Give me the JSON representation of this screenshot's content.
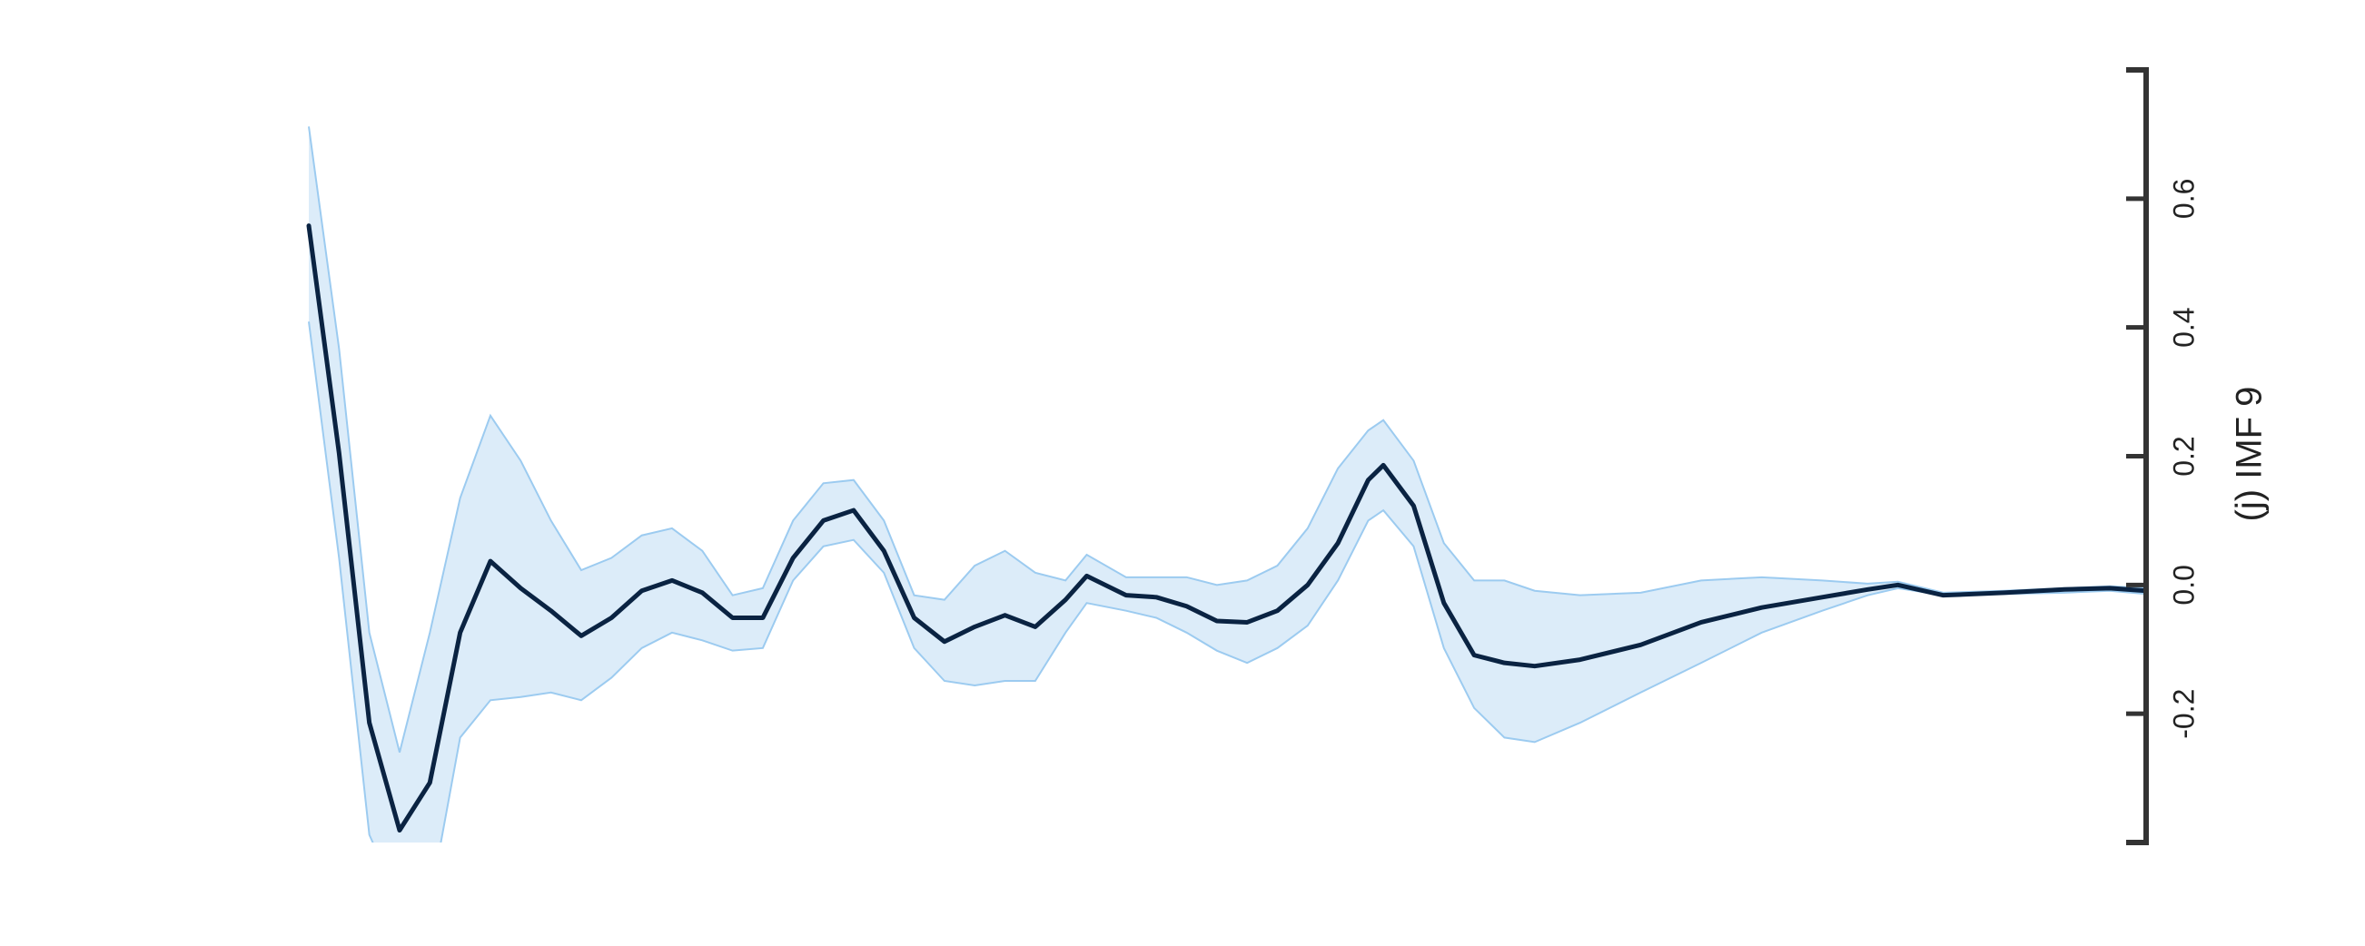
{
  "chart_data": {
    "type": "line",
    "y_label": "(j) IMF 9",
    "x": [
      0,
      20,
      40,
      60,
      80,
      100,
      120,
      140,
      160,
      180,
      200,
      220,
      240,
      260,
      280,
      300,
      320,
      340,
      360,
      380,
      400,
      420,
      440,
      460,
      480,
      500,
      514,
      540,
      560,
      580,
      600,
      620,
      640,
      660,
      680,
      700,
      710,
      730,
      750,
      770,
      790,
      810,
      840,
      880,
      920,
      960,
      1000,
      1030,
      1050,
      1080,
      1120,
      1160,
      1190,
      1214
    ],
    "xlim": [
      0,
      1214
    ],
    "series": [
      {
        "color": "#0a2342",
        "band_color": "#dcecf9",
        "band_edge_color": "#9ccbf0",
        "values": [
          0.558,
          0.205,
          -0.214,
          -0.381,
          -0.307,
          -0.074,
          0.037,
          -0.005,
          -0.04,
          -0.079,
          -0.051,
          -0.009,
          0.007,
          -0.012,
          -0.051,
          -0.051,
          0.042,
          0.1,
          0.116,
          0.053,
          -0.051,
          -0.088,
          -0.065,
          -0.047,
          -0.065,
          -0.023,
          0.014,
          -0.016,
          -0.019,
          -0.033,
          -0.056,
          -0.058,
          -0.04,
          0,
          0.065,
          0.163,
          0.186,
          0.123,
          -0.028,
          -0.109,
          -0.121,
          -0.126,
          -0.116,
          -0.093,
          -0.058,
          -0.035,
          -0.019,
          -0.007,
          0,
          -0.016,
          -0.012,
          -0.007,
          -0.005,
          -0.009
        ],
        "upper": [
          0.712,
          0.367,
          -0.074,
          -0.26,
          -0.074,
          0.135,
          0.263,
          0.193,
          0.1,
          0.023,
          0.042,
          0.077,
          0.088,
          0.053,
          -0.016,
          -0.005,
          0.1,
          0.158,
          0.163,
          0.1,
          -0.016,
          -0.023,
          0.03,
          0.053,
          0.019,
          0.007,
          0.047,
          0.012,
          0.012,
          0.012,
          0,
          0.007,
          0.03,
          0.088,
          0.181,
          0.24,
          0.256,
          0.193,
          0.065,
          0.007,
          0.007,
          -0.009,
          -0.016,
          -0.012,
          0.007,
          0.012,
          0.007,
          0.002,
          0.005,
          -0.012,
          -0.009,
          -0.005,
          -0.002,
          -0.005
        ],
        "lower": [
          0.409,
          0.042,
          -0.388,
          -0.493,
          -0.493,
          -0.237,
          -0.179,
          -0.174,
          -0.167,
          -0.179,
          -0.144,
          -0.098,
          -0.074,
          -0.086,
          -0.102,
          -0.098,
          0.007,
          0.06,
          0.07,
          0.019,
          -0.098,
          -0.149,
          -0.156,
          -0.149,
          -0.149,
          -0.074,
          -0.028,
          -0.04,
          -0.051,
          -0.074,
          -0.102,
          -0.121,
          -0.098,
          -0.063,
          0.007,
          0.1,
          0.116,
          0.06,
          -0.098,
          -0.191,
          -0.237,
          -0.244,
          -0.214,
          -0.167,
          -0.121,
          -0.074,
          -0.04,
          -0.016,
          -0.005,
          -0.016,
          -0.014,
          -0.012,
          -0.009,
          -0.014
        ]
      }
    ],
    "ylim": [
      -0.4,
      0.8
    ],
    "yticks": [
      -0.2,
      {
        "value": 0,
        "label": "0.0"
      },
      0.2,
      0.4,
      0.6
    ],
    "axis_color": "#333333"
  }
}
